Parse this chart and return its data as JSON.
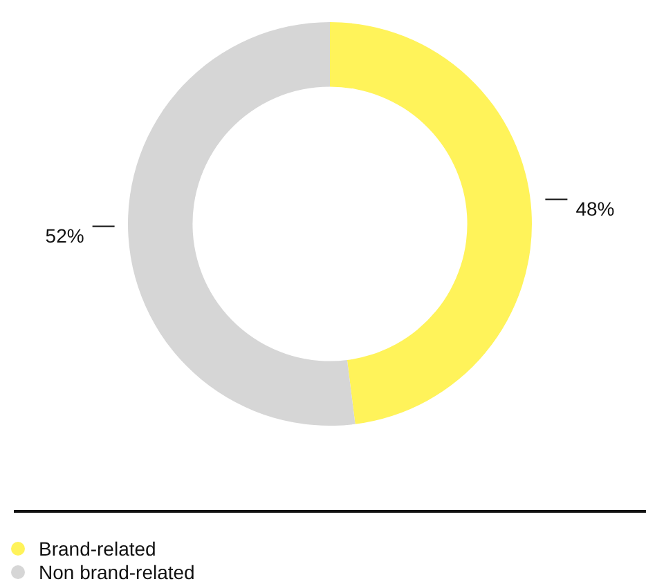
{
  "chart_data": {
    "type": "donut",
    "categories": [
      "Brand-related",
      "Non brand-related"
    ],
    "values": [
      48,
      52
    ],
    "colors": [
      "#fff35a",
      "#d6d6d6"
    ],
    "value_labels": [
      "48%",
      "52%"
    ],
    "legend": "bottom left"
  }
}
